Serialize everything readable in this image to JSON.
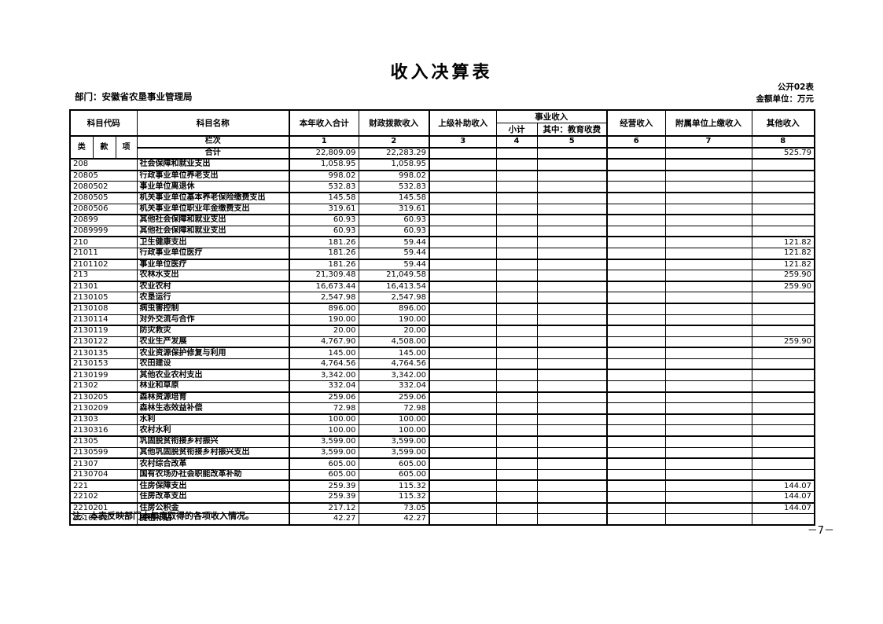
{
  "page": {
    "title": "收入决算表",
    "form_code": "公开02表",
    "department": "部门：安徽省农垦事业管理局",
    "unit": "金额单位：万元",
    "note": "注：本表反映部门本年度取得的各项收入情况。",
    "page_number": "－7－"
  },
  "table": {
    "header": {
      "subject_code": "科目代码",
      "code_sub": [
        "类",
        "款",
        "项"
      ],
      "subject_name": "科目名称",
      "col_year_total": "本年收入合计",
      "col_fiscal": "财政拨款收入",
      "col_superior": "上级补助收入",
      "col_business": "事业收入",
      "col_business_subtotal": "小计",
      "col_business_edu": "其中：教育收费",
      "col_operating": "经营收入",
      "col_affiliated": "附属单位上缴收入",
      "col_other": "其他收入",
      "lanci_label": "栏次",
      "col_numbers": [
        "1",
        "2",
        "3",
        "4",
        "5",
        "6",
        "7",
        "8"
      ]
    },
    "total_row": {
      "label": "合计",
      "values": [
        "22,809.09",
        "22,283.29",
        "",
        "",
        "",
        "",
        "",
        "525.79"
      ]
    },
    "rows": [
      {
        "code": "208",
        "name": "社会保障和就业支出",
        "values": [
          "1,058.95",
          "1,058.95",
          "",
          "",
          "",
          "",
          "",
          ""
        ]
      },
      {
        "code": "20805",
        "name": "行政事业单位养老支出",
        "values": [
          "998.02",
          "998.02",
          "",
          "",
          "",
          "",
          "",
          ""
        ]
      },
      {
        "code": "2080502",
        "name": "事业单位离退休",
        "values": [
          "532.83",
          "532.83",
          "",
          "",
          "",
          "",
          "",
          ""
        ]
      },
      {
        "code": "2080505",
        "name": "机关事业单位基本养老保险缴费支出",
        "values": [
          "145.58",
          "145.58",
          "",
          "",
          "",
          "",
          "",
          ""
        ]
      },
      {
        "code": "2080506",
        "name": "机关事业单位职业年金缴费支出",
        "values": [
          "319.61",
          "319.61",
          "",
          "",
          "",
          "",
          "",
          ""
        ]
      },
      {
        "code": "20899",
        "name": "其他社会保障和就业支出",
        "values": [
          "60.93",
          "60.93",
          "",
          "",
          "",
          "",
          "",
          ""
        ]
      },
      {
        "code": "2089999",
        "name": "其他社会保障和就业支出",
        "values": [
          "60.93",
          "60.93",
          "",
          "",
          "",
          "",
          "",
          ""
        ]
      },
      {
        "code": "210",
        "name": "卫生健康支出",
        "values": [
          "181.26",
          "59.44",
          "",
          "",
          "",
          "",
          "",
          "121.82"
        ]
      },
      {
        "code": "21011",
        "name": "行政事业单位医疗",
        "values": [
          "181.26",
          "59.44",
          "",
          "",
          "",
          "",
          "",
          "121.82"
        ]
      },
      {
        "code": "2101102",
        "name": "事业单位医疗",
        "values": [
          "181.26",
          "59.44",
          "",
          "",
          "",
          "",
          "",
          "121.82"
        ]
      },
      {
        "code": "213",
        "name": "农林水支出",
        "values": [
          "21,309.48",
          "21,049.58",
          "",
          "",
          "",
          "",
          "",
          "259.90"
        ]
      },
      {
        "code": "21301",
        "name": "农业农村",
        "values": [
          "16,673.44",
          "16,413.54",
          "",
          "",
          "",
          "",
          "",
          "259.90"
        ]
      },
      {
        "code": "2130105",
        "name": "农垦运行",
        "values": [
          "2,547.98",
          "2,547.98",
          "",
          "",
          "",
          "",
          "",
          ""
        ]
      },
      {
        "code": "2130108",
        "name": "病虫害控制",
        "values": [
          "896.00",
          "896.00",
          "",
          "",
          "",
          "",
          "",
          ""
        ]
      },
      {
        "code": "2130114",
        "name": "对外交流与合作",
        "values": [
          "190.00",
          "190.00",
          "",
          "",
          "",
          "",
          "",
          ""
        ]
      },
      {
        "code": "2130119",
        "name": "防灾救灾",
        "values": [
          "20.00",
          "20.00",
          "",
          "",
          "",
          "",
          "",
          ""
        ]
      },
      {
        "code": "2130122",
        "name": "农业生产发展",
        "values": [
          "4,767.90",
          "4,508.00",
          "",
          "",
          "",
          "",
          "",
          "259.90"
        ]
      },
      {
        "code": "2130135",
        "name": "农业资源保护修复与利用",
        "values": [
          "145.00",
          "145.00",
          "",
          "",
          "",
          "",
          "",
          ""
        ]
      },
      {
        "code": "2130153",
        "name": "农田建设",
        "values": [
          "4,764.56",
          "4,764.56",
          "",
          "",
          "",
          "",
          "",
          ""
        ]
      },
      {
        "code": "2130199",
        "name": "其他农业农村支出",
        "values": [
          "3,342.00",
          "3,342.00",
          "",
          "",
          "",
          "",
          "",
          ""
        ]
      },
      {
        "code": "21302",
        "name": "林业和草原",
        "values": [
          "332.04",
          "332.04",
          "",
          "",
          "",
          "",
          "",
          ""
        ]
      },
      {
        "code": "2130205",
        "name": "森林资源培育",
        "values": [
          "259.06",
          "259.06",
          "",
          "",
          "",
          "",
          "",
          ""
        ]
      },
      {
        "code": "2130209",
        "name": "森林生态效益补偿",
        "values": [
          "72.98",
          "72.98",
          "",
          "",
          "",
          "",
          "",
          ""
        ]
      },
      {
        "code": "21303",
        "name": "水利",
        "values": [
          "100.00",
          "100.00",
          "",
          "",
          "",
          "",
          "",
          ""
        ]
      },
      {
        "code": "2130316",
        "name": "农村水利",
        "values": [
          "100.00",
          "100.00",
          "",
          "",
          "",
          "",
          "",
          ""
        ]
      },
      {
        "code": "21305",
        "name": "巩固脱贫衔接乡村振兴",
        "values": [
          "3,599.00",
          "3,599.00",
          "",
          "",
          "",
          "",
          "",
          ""
        ]
      },
      {
        "code": "2130599",
        "name": "其他巩固脱贫衔接乡村振兴支出",
        "values": [
          "3,599.00",
          "3,599.00",
          "",
          "",
          "",
          "",
          "",
          ""
        ]
      },
      {
        "code": "21307",
        "name": "农村综合改革",
        "values": [
          "605.00",
          "605.00",
          "",
          "",
          "",
          "",
          "",
          ""
        ]
      },
      {
        "code": "2130704",
        "name": "国有农场办社会职能改革补助",
        "values": [
          "605.00",
          "605.00",
          "",
          "",
          "",
          "",
          "",
          ""
        ]
      },
      {
        "code": "221",
        "name": "住房保障支出",
        "values": [
          "259.39",
          "115.32",
          "",
          "",
          "",
          "",
          "",
          "144.07"
        ]
      },
      {
        "code": "22102",
        "name": "住房改革支出",
        "values": [
          "259.39",
          "115.32",
          "",
          "",
          "",
          "",
          "",
          "144.07"
        ]
      },
      {
        "code": "2210201",
        "name": "住房公积金",
        "values": [
          "217.12",
          "73.05",
          "",
          "",
          "",
          "",
          "",
          "144.07"
        ]
      },
      {
        "code": "2210202",
        "name": "提租补贴",
        "values": [
          "42.27",
          "42.27",
          "",
          "",
          "",
          "",
          "",
          ""
        ]
      }
    ]
  }
}
